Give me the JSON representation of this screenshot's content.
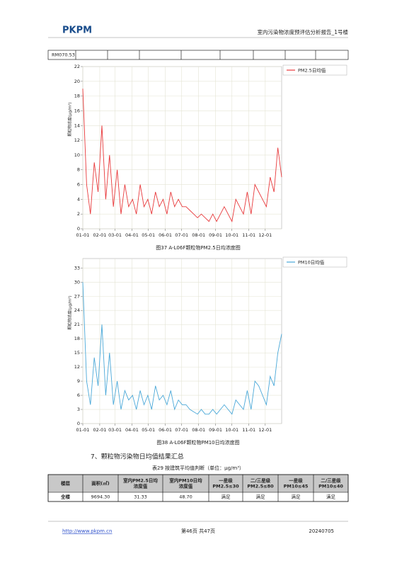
{
  "header": {
    "logo": "PKPM",
    "title": "室内污染物浓度预评估分析报告_1号楼"
  },
  "top_table": {
    "first_cell": "RM070.53"
  },
  "chart_data": [
    {
      "type": "line",
      "y_label": "颗粒物浓度(μg/m³)",
      "caption": "图37 A-L06F颗粒物PM2.5日均浓度图",
      "x": [
        "01-01",
        "01-08",
        "01-15",
        "01-22",
        "01-29",
        "02-05",
        "02-12",
        "02-19",
        "02-26",
        "03-05",
        "03-12",
        "03-19",
        "03-26",
        "04-02",
        "04-09",
        "04-16",
        "04-23",
        "04-30",
        "05-07",
        "05-14",
        "05-21",
        "05-28",
        "06-04",
        "06-11",
        "06-18",
        "06-25",
        "07-02",
        "07-09",
        "07-16",
        "07-23",
        "07-30",
        "08-06",
        "08-13",
        "08-20",
        "08-27",
        "09-03",
        "09-10",
        "09-17",
        "09-24",
        "10-01",
        "10-08",
        "10-15",
        "10-22",
        "10-29",
        "11-05",
        "11-12",
        "11-19",
        "11-26",
        "12-03",
        "12-10",
        "12-17",
        "12-24",
        "12-31"
      ],
      "series": [
        {
          "name": "PM2.5日均值",
          "color": "#e8393b",
          "values": [
            19,
            6,
            2,
            9,
            5,
            14,
            4,
            10,
            3,
            8,
            2,
            6,
            3,
            4,
            2,
            6,
            3,
            4,
            2,
            5,
            3,
            4,
            2,
            5,
            3,
            4,
            3,
            3,
            2.5,
            2,
            1.5,
            2,
            1.5,
            1,
            2,
            1,
            2,
            3,
            2,
            1,
            4,
            3,
            2,
            5,
            2,
            6,
            5,
            4,
            3,
            7,
            5,
            11,
            7
          ]
        }
      ],
      "ylim": [
        0,
        22
      ],
      "yticks": [
        0,
        2,
        4,
        6,
        8,
        10,
        12,
        14,
        16,
        18,
        20,
        22
      ],
      "xticks": [
        "01-01",
        "02-01",
        "03-01",
        "04-01",
        "05-01",
        "06-01",
        "07-01",
        "08-01",
        "09-01",
        "10-01",
        "11-01",
        "12-01"
      ],
      "grid": true,
      "legend": "upper right"
    },
    {
      "type": "line",
      "y_label": "颗粒物浓度(μg/m³)",
      "caption": "图38 A-L06F颗粒物PM10日均浓度图",
      "x": [
        "01-01",
        "01-08",
        "01-15",
        "01-22",
        "01-29",
        "02-05",
        "02-12",
        "02-19",
        "02-26",
        "03-05",
        "03-12",
        "03-19",
        "03-26",
        "04-02",
        "04-09",
        "04-16",
        "04-23",
        "04-30",
        "05-07",
        "05-14",
        "05-21",
        "05-28",
        "06-04",
        "06-11",
        "06-18",
        "06-25",
        "07-02",
        "07-09",
        "07-16",
        "07-23",
        "07-30",
        "08-06",
        "08-13",
        "08-20",
        "08-27",
        "09-03",
        "09-10",
        "09-17",
        "09-24",
        "10-01",
        "10-08",
        "10-15",
        "10-22",
        "10-29",
        "11-05",
        "11-12",
        "11-19",
        "11-26",
        "12-03",
        "12-10",
        "12-17",
        "12-24",
        "12-31"
      ],
      "series": [
        {
          "name": "PM10日均值",
          "color": "#4aa8d8",
          "values": [
            30,
            9,
            4,
            14,
            8,
            21,
            6,
            15,
            4,
            9,
            3,
            7,
            5,
            6,
            3,
            7,
            4,
            6,
            3,
            8,
            5,
            6,
            4,
            7,
            3,
            5,
            4,
            4,
            3,
            2.5,
            2,
            3,
            2,
            2,
            3,
            2,
            3,
            4,
            3,
            2,
            5,
            4,
            3,
            7,
            3,
            9,
            8,
            6,
            4,
            10,
            8,
            15,
            19
          ]
        }
      ],
      "ylim": [
        0,
        35
      ],
      "yticks": [
        0,
        3,
        6,
        9,
        12,
        15,
        18,
        21,
        24,
        27,
        30,
        33
      ],
      "xticks": [
        "01-01",
        "02-01",
        "03-01",
        "04-01",
        "05-01",
        "06-01",
        "07-01",
        "08-01",
        "09-01",
        "10-01",
        "11-01",
        "12-01"
      ],
      "grid": true,
      "legend": "upper right"
    }
  ],
  "section": {
    "title": "7、颗粒物污染物日均值结果汇总"
  },
  "table": {
    "caption": "表29 按建筑平均值判断（单位：μg/m³）",
    "header": [
      [
        "楼层"
      ],
      [
        "面积(㎡)"
      ],
      [
        "室内PM2.5日均",
        "浓度值"
      ],
      [
        "室内PM10日均",
        "浓度值"
      ],
      [
        "一星级",
        "PM2.5≤30"
      ],
      [
        "二/三星级",
        "PM2.5≤80"
      ],
      [
        "一星级",
        "PM10≤45"
      ],
      [
        "二/三星级",
        "PM10≤40"
      ]
    ],
    "rows": [
      [
        "全楼",
        "9694.30",
        "31.33",
        "48.70",
        "满足",
        "满足",
        "满足",
        "满足"
      ]
    ]
  },
  "footer": {
    "url": "http://www.pkpm.cn",
    "page": "第46页 共47页",
    "date": "20240705"
  }
}
